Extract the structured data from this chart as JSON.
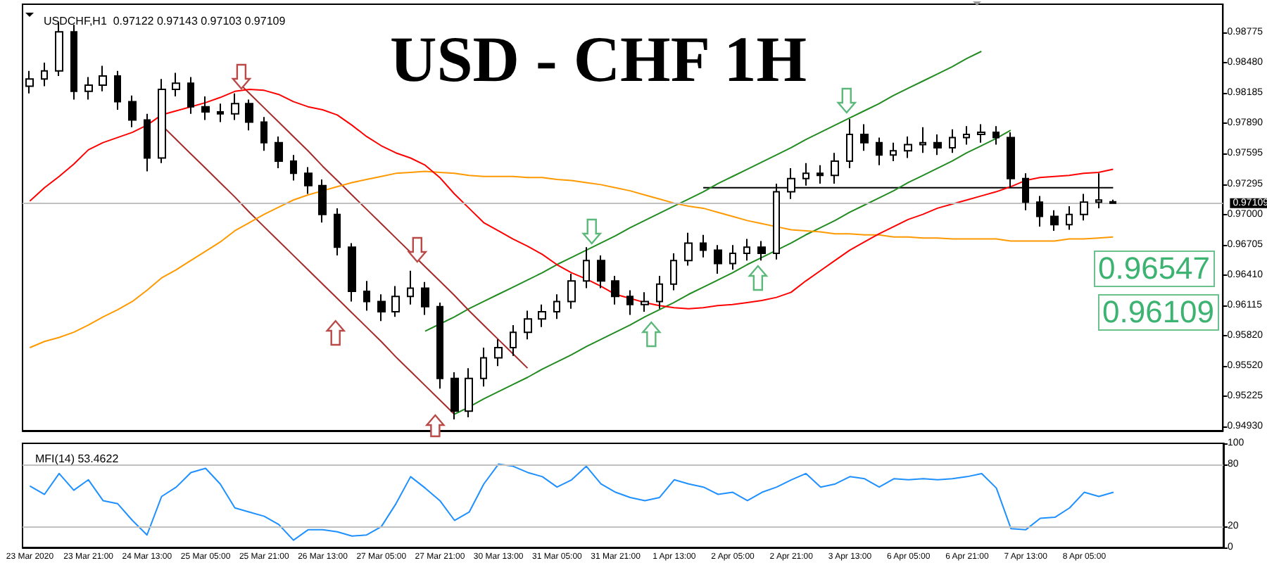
{
  "chart_data": [
    {
      "type": "candlestick",
      "title": "USD - CHF 1H",
      "subtitle": "USDCHF,H1  0.97122 0.97143 0.97103 0.97109",
      "marker": "none",
      "categories": [
        null,
        null,
        null,
        null,
        null,
        null,
        null,
        null,
        null,
        null,
        null,
        null,
        null,
        null,
        null,
        null,
        null,
        null,
        null,
        null,
        null,
        null,
        null,
        null,
        null,
        null,
        null,
        null,
        null,
        null,
        null,
        null,
        null,
        null,
        null,
        null,
        null,
        null,
        null,
        null,
        null,
        null,
        null,
        null,
        null,
        null,
        null,
        null,
        null,
        null,
        null,
        null,
        null,
        null,
        null,
        null,
        null,
        null,
        null,
        null,
        null,
        null,
        null,
        null,
        null,
        null,
        null,
        null,
        null,
        null,
        null,
        null,
        null,
        null,
        null
      ],
      "ohlc": [
        [
          0.9825,
          0.984,
          0.9818,
          0.9832
        ],
        [
          0.9832,
          0.9848,
          0.9825,
          0.984
        ],
        [
          0.984,
          0.9888,
          0.9835,
          0.9878
        ],
        [
          0.9878,
          0.9885,
          0.9812,
          0.982
        ],
        [
          0.982,
          0.9834,
          0.9812,
          0.9826
        ],
        [
          0.9826,
          0.9845,
          0.982,
          0.9835
        ],
        [
          0.9835,
          0.984,
          0.9802,
          0.981
        ],
        [
          0.981,
          0.9816,
          0.9785,
          0.9792
        ],
        [
          0.9792,
          0.9798,
          0.9742,
          0.9755
        ],
        [
          0.9755,
          0.9832,
          0.975,
          0.9822
        ],
        [
          0.9822,
          0.9838,
          0.9815,
          0.9828
        ],
        [
          0.9828,
          0.9834,
          0.9798,
          0.9805
        ],
        [
          0.9805,
          0.9815,
          0.9792,
          0.98
        ],
        [
          0.98,
          0.9808,
          0.979,
          0.9798
        ],
        [
          0.9798,
          0.9818,
          0.9792,
          0.9808
        ],
        [
          0.9808,
          0.9812,
          0.9782,
          0.979
        ],
        [
          0.979,
          0.9795,
          0.9762,
          0.977
        ],
        [
          0.977,
          0.9776,
          0.9745,
          0.9752
        ],
        [
          0.9752,
          0.9758,
          0.9733,
          0.974
        ],
        [
          0.974,
          0.9746,
          0.972,
          0.9728
        ],
        [
          0.9728,
          0.9734,
          0.9692,
          0.97
        ],
        [
          0.97,
          0.9706,
          0.966,
          0.9668
        ],
        [
          0.9668,
          0.9672,
          0.9615,
          0.9625
        ],
        [
          0.9625,
          0.9635,
          0.9606,
          0.9615
        ],
        [
          0.9615,
          0.9622,
          0.9596,
          0.9605
        ],
        [
          0.9605,
          0.963,
          0.96,
          0.962
        ],
        [
          0.962,
          0.9645,
          0.9612,
          0.9628
        ],
        [
          0.9628,
          0.9634,
          0.9602,
          0.961
        ],
        [
          0.961,
          0.9614,
          0.953,
          0.954
        ],
        [
          0.954,
          0.9546,
          0.95,
          0.9508
        ],
        [
          0.9508,
          0.955,
          0.9502,
          0.954
        ],
        [
          0.954,
          0.957,
          0.9532,
          0.956
        ],
        [
          0.956,
          0.9578,
          0.9552,
          0.957
        ],
        [
          0.957,
          0.9592,
          0.9562,
          0.9585
        ],
        [
          0.9585,
          0.9606,
          0.9578,
          0.9598
        ],
        [
          0.9598,
          0.9612,
          0.959,
          0.9605
        ],
        [
          0.9605,
          0.9622,
          0.9598,
          0.9615
        ],
        [
          0.9615,
          0.9642,
          0.9608,
          0.9635
        ],
        [
          0.9635,
          0.9668,
          0.9628,
          0.9655
        ],
        [
          0.9655,
          0.966,
          0.9628,
          0.9635
        ],
        [
          0.9635,
          0.964,
          0.9612,
          0.962
        ],
        [
          0.962,
          0.9626,
          0.9602,
          0.9612
        ],
        [
          0.9612,
          0.9624,
          0.9605,
          0.9615
        ],
        [
          0.9615,
          0.964,
          0.9608,
          0.9632
        ],
        [
          0.9632,
          0.9662,
          0.9626,
          0.9655
        ],
        [
          0.9655,
          0.9682,
          0.965,
          0.9672
        ],
        [
          0.9672,
          0.968,
          0.9658,
          0.9665
        ],
        [
          0.9665,
          0.967,
          0.9642,
          0.9652
        ],
        [
          0.9652,
          0.967,
          0.9646,
          0.9662
        ],
        [
          0.9662,
          0.9676,
          0.9655,
          0.9668
        ],
        [
          0.9668,
          0.9674,
          0.9655,
          0.9662
        ],
        [
          0.9662,
          0.973,
          0.9656,
          0.9722
        ],
        [
          0.9722,
          0.9745,
          0.9715,
          0.9735
        ],
        [
          0.9735,
          0.975,
          0.9728,
          0.974
        ],
        [
          0.974,
          0.9748,
          0.973,
          0.9738
        ],
        [
          0.9738,
          0.976,
          0.973,
          0.9752
        ],
        [
          0.9752,
          0.9793,
          0.9745,
          0.9778
        ],
        [
          0.9778,
          0.9788,
          0.9762,
          0.977
        ],
        [
          0.977,
          0.9775,
          0.9748,
          0.9758
        ],
        [
          0.9758,
          0.977,
          0.9752,
          0.9762
        ],
        [
          0.9762,
          0.9776,
          0.9755,
          0.9768
        ],
        [
          0.9768,
          0.9785,
          0.976,
          0.977
        ],
        [
          0.977,
          0.9778,
          0.9758,
          0.9765
        ],
        [
          0.9765,
          0.9783,
          0.976,
          0.9775
        ],
        [
          0.9775,
          0.9786,
          0.9768,
          0.9778
        ],
        [
          0.9778,
          0.9788,
          0.977,
          0.978
        ],
        [
          0.978,
          0.9786,
          0.9768,
          0.9775
        ],
        [
          0.9775,
          0.978,
          0.9726,
          0.9735
        ],
        [
          0.9735,
          0.974,
          0.9704,
          0.9712
        ],
        [
          0.9712,
          0.9718,
          0.9688,
          0.9698
        ],
        [
          0.9698,
          0.9704,
          0.9684,
          0.969
        ],
        [
          0.969,
          0.9708,
          0.9685,
          0.97
        ],
        [
          0.97,
          0.972,
          0.9694,
          0.9712
        ],
        [
          0.9712,
          0.974,
          0.9706,
          0.9714
        ],
        [
          0.97122,
          0.97143,
          0.97103,
          0.97109
        ]
      ],
      "ylim": [
        0.9489,
        0.9905
      ],
      "yticks": [
        {
          "value": 0.9493,
          "label": "0.94930"
        },
        0.95225,
        {
          "value": 0.9552,
          "label": "0.95520"
        },
        {
          "value": 0.9582,
          "label": "0.95820"
        },
        0.96115,
        {
          "value": 0.9641,
          "label": "0.96410"
        },
        0.96705,
        {
          "value": 0.97,
          "label": "0.97000"
        },
        0.97295,
        0.97595,
        {
          "value": 0.9789,
          "label": "0.97890"
        },
        0.98185,
        {
          "value": 0.9848,
          "label": "0.98480"
        },
        0.98775
      ],
      "series": [
        {
          "type": "line",
          "color": "#ff0000",
          "values": [
            0.9713,
            0.9726,
            0.9737,
            0.9749,
            0.9763,
            0.977,
            0.9775,
            0.978,
            0.9787,
            0.9797,
            0.9801,
            0.9805,
            0.9809,
            0.9814,
            0.982,
            0.9822,
            0.9821,
            0.9817,
            0.981,
            0.9805,
            0.9802,
            0.9797,
            0.9787,
            0.9776,
            0.9767,
            0.976,
            0.9755,
            0.9748,
            0.9736,
            0.972,
            0.9706,
            0.9692,
            0.9684,
            0.9676,
            0.9669,
            0.9661,
            0.9651,
            0.9643,
            0.9637,
            0.963,
            0.9622,
            0.9618,
            0.9614,
            0.9611,
            0.9609,
            0.9608,
            0.9609,
            0.9611,
            0.9612,
            0.9614,
            0.9616,
            0.9619,
            0.9624,
            0.9635,
            0.9645,
            0.9655,
            0.9665,
            0.9673,
            0.9681,
            0.9688,
            0.9695,
            0.97,
            0.9706,
            0.971,
            0.9714,
            0.9718,
            0.9722,
            0.9727,
            0.9733,
            0.9736,
            0.9737,
            0.9738,
            0.974,
            0.9741,
            0.9744
          ]
        },
        {
          "type": "line",
          "color": "#ff9900",
          "values": [
            0.957,
            0.9576,
            0.958,
            0.9585,
            0.9592,
            0.96,
            0.9607,
            0.9615,
            0.9626,
            0.9638,
            0.9646,
            0.9655,
            0.9664,
            0.9673,
            0.9684,
            0.9692,
            0.97,
            0.9707,
            0.9714,
            0.9719,
            0.9723,
            0.9727,
            0.9731,
            0.9734,
            0.9737,
            0.974,
            0.9741,
            0.9742,
            0.9741,
            0.974,
            0.9738,
            0.9737,
            0.9737,
            0.9737,
            0.9736,
            0.9736,
            0.9734,
            0.9733,
            0.9731,
            0.9729,
            0.9726,
            0.9723,
            0.9719,
            0.9715,
            0.9711,
            0.9708,
            0.9706,
            0.9702,
            0.9698,
            0.9694,
            0.9691,
            0.9688,
            0.9685,
            0.9684,
            0.9683,
            0.9681,
            0.9681,
            0.968,
            0.968,
            0.9678,
            0.9678,
            0.9677,
            0.9677,
            0.9676,
            0.9676,
            0.9676,
            0.9676,
            0.9674,
            0.9674,
            0.9674,
            0.9674,
            0.9676,
            0.9676,
            0.9677,
            0.9678
          ]
        },
        {
          "type": "line",
          "color": "#a52a2a",
          "values": [
            null,
            null,
            null,
            null,
            null,
            null,
            null,
            null,
            null,
            null,
            null,
            null,
            null,
            null,
            0.9832,
            0.9818,
            0.9804,
            0.979,
            0.9776,
            0.9762,
            0.9747,
            0.9733,
            0.9719,
            0.9705,
            0.9691,
            0.9677,
            0.9663,
            0.9649,
            0.9635,
            0.9621,
            0.9606,
            0.9592,
            0.9578,
            0.9564,
            0.955,
            null,
            null,
            null,
            null,
            null,
            null,
            null,
            null,
            null,
            null,
            null,
            null,
            null,
            null,
            null,
            null,
            null,
            null,
            null,
            null,
            null,
            null,
            null,
            null,
            null,
            null,
            null,
            null,
            null,
            null,
            null,
            null,
            null,
            null,
            null,
            null,
            null,
            null,
            null,
            null
          ]
        },
        {
          "type": "line",
          "color": "#a52a2a",
          "values": [
            null,
            null,
            null,
            null,
            null,
            null,
            null,
            null,
            null,
            0.9787,
            0.9773,
            0.9759,
            0.9745,
            0.9731,
            0.9717,
            0.9702,
            0.9688,
            0.9674,
            0.966,
            0.9646,
            0.9632,
            0.9618,
            0.9604,
            0.959,
            0.9576,
            0.9561,
            0.9547,
            0.9533,
            0.9519,
            0.9505,
            null,
            null,
            null,
            null,
            null,
            null,
            null,
            null,
            null,
            null,
            null,
            null,
            null,
            null,
            null,
            null,
            null,
            null,
            null,
            null,
            null,
            null,
            null,
            null,
            null,
            null,
            null,
            null,
            null,
            null,
            null,
            null,
            null,
            null,
            null,
            null,
            null,
            null,
            null,
            null,
            null,
            null,
            null,
            null,
            null
          ]
        },
        {
          "type": "line",
          "color": "#228b22",
          "values": [
            null,
            null,
            null,
            null,
            null,
            null,
            null,
            null,
            null,
            null,
            null,
            null,
            null,
            null,
            null,
            null,
            null,
            null,
            null,
            null,
            null,
            null,
            null,
            null,
            null,
            null,
            null,
            0.9586,
            0.9593,
            0.96,
            0.9608,
            0.9615,
            0.9622,
            0.9629,
            0.9636,
            0.9643,
            0.9651,
            0.9658,
            0.9665,
            0.9672,
            0.9679,
            0.9687,
            0.9694,
            0.9701,
            0.9708,
            0.9715,
            0.9722,
            0.973,
            0.9737,
            0.9744,
            0.9751,
            0.9758,
            0.9765,
            0.9773,
            0.978,
            0.9787,
            0.9794,
            0.9801,
            0.9808,
            0.9816,
            0.9823,
            0.983,
            0.9837,
            0.9844,
            0.9852,
            0.9859,
            null,
            null,
            null,
            null,
            null,
            null,
            null,
            null,
            null
          ]
        },
        {
          "type": "line",
          "color": "#228b22",
          "values": [
            null,
            null,
            null,
            null,
            null,
            null,
            null,
            null,
            null,
            null,
            null,
            null,
            null,
            null,
            null,
            null,
            null,
            null,
            null,
            null,
            null,
            null,
            null,
            null,
            null,
            null,
            null,
            null,
            null,
            0.9505,
            0.9512,
            0.952,
            0.9527,
            0.9534,
            0.9541,
            0.9549,
            0.9556,
            0.9563,
            0.9571,
            0.9578,
            0.9585,
            0.9592,
            0.96,
            0.9607,
            0.9614,
            0.9622,
            0.9629,
            0.9636,
            0.9643,
            0.9651,
            0.9658,
            0.9665,
            0.9672,
            0.968,
            0.9687,
            0.9694,
            0.9702,
            0.9709,
            0.9716,
            0.9723,
            0.9731,
            0.9738,
            0.9745,
            0.9752,
            0.976,
            0.9767,
            0.9774,
            0.9782,
            null,
            null,
            null,
            null,
            null,
            null,
            null
          ]
        },
        {
          "type": "line",
          "color": "#000000",
          "values": [
            null,
            null,
            null,
            null,
            null,
            null,
            null,
            null,
            null,
            null,
            null,
            null,
            null,
            null,
            null,
            null,
            null,
            null,
            null,
            null,
            null,
            null,
            null,
            null,
            null,
            null,
            null,
            null,
            null,
            null,
            null,
            null,
            null,
            null,
            null,
            null,
            null,
            null,
            null,
            null,
            null,
            null,
            null,
            null,
            null,
            null,
            0.9726,
            0.9726,
            0.9726,
            0.9726,
            0.9726,
            0.9726,
            0.9726,
            0.9726,
            0.9726,
            0.9726,
            0.9726,
            0.9726,
            0.9726,
            0.9726,
            0.9726,
            0.9726,
            0.9726,
            0.9726,
            0.9726,
            0.9726,
            0.9726,
            0.9726,
            0.9726,
            0.9726,
            0.9726,
            0.9726,
            0.9726,
            0.9726,
            0.9726
          ]
        }
      ],
      "ref_lines": [
        {
          "axis": "y",
          "value": 0.97109,
          "label": "0.97109",
          "color": "#c0c0c0"
        }
      ],
      "annotations": [
        "0.96547",
        "0.96109"
      ]
    },
    {
      "type": "line",
      "title": "MFI(14) 53.4622",
      "color": "#1e90ff",
      "marker": "none",
      "categories": [
        "23 Mar 2020",
        null,
        null,
        null,
        "23 Mar 21:00",
        null,
        null,
        null,
        "24 Mar 13:00",
        null,
        null,
        null,
        "25 Mar 05:00",
        null,
        null,
        null,
        "25 Mar 21:00",
        null,
        null,
        null,
        "26 Mar 13:00",
        null,
        null,
        null,
        "27 Mar 05:00",
        null,
        null,
        null,
        "27 Mar 21:00",
        null,
        null,
        null,
        "30 Mar 13:00",
        null,
        null,
        null,
        "31 Mar 05:00",
        null,
        null,
        null,
        "31 Mar 21:00",
        null,
        null,
        null,
        "1 Apr 13:00",
        null,
        null,
        null,
        "2 Apr 05:00",
        null,
        null,
        null,
        "2 Apr 21:00",
        null,
        null,
        null,
        "3 Apr 13:00",
        null,
        null,
        null,
        "6 Apr 05:00",
        null,
        null,
        null,
        "6 Apr 21:00",
        null,
        null,
        null,
        "7 Apr 13:00",
        null,
        null,
        null,
        "8 Apr 05:00",
        null,
        null
      ],
      "values": [
        59,
        51,
        71,
        55,
        65,
        45,
        42,
        26,
        12,
        49,
        58,
        72,
        76,
        61,
        38,
        34,
        30,
        22,
        7,
        17,
        17,
        15,
        11,
        12,
        20,
        42,
        68,
        57,
        45,
        26,
        34,
        61,
        80,
        78,
        72,
        68,
        58,
        65,
        78,
        61,
        53,
        48,
        45,
        48,
        65,
        61,
        58,
        51,
        53,
        45,
        53,
        58,
        65,
        71,
        58,
        61,
        68,
        66,
        58,
        66,
        65,
        66,
        65,
        66,
        68,
        71,
        57,
        18,
        17,
        28,
        29,
        38,
        53,
        49,
        53
      ],
      "ylim": [
        0,
        100
      ],
      "yticks": [
        0,
        20,
        80,
        100
      ],
      "ref_lines": [
        {
          "axis": "y",
          "value": 20,
          "color": "#c0c0c0"
        },
        {
          "axis": "y",
          "value": 80,
          "color": "#c0c0c0"
        }
      ]
    }
  ]
}
